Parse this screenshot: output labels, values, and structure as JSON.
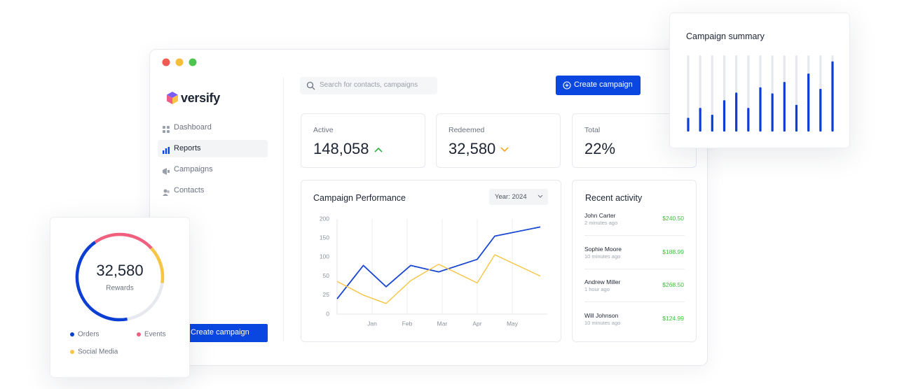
{
  "window": {
    "logo": "versify",
    "nav": [
      "Dashboard",
      "Reports",
      "Campaigns",
      "Contacts"
    ],
    "search_placeholder": "Search for contacts, campaigns",
    "create_button": "Create campaign",
    "sidebar_button": "Create campaign"
  },
  "stats": [
    {
      "label": "Active",
      "value": "148,058",
      "trend": "up"
    },
    {
      "label": "Redeemed",
      "value": "32,580",
      "trend": "down"
    },
    {
      "label": "Total",
      "value": "22%"
    }
  ],
  "activity": {
    "title": "Recent activity",
    "items": [
      {
        "name": "John Carter",
        "time": "2 minutes ago",
        "amount": "$240.50"
      },
      {
        "name": "Sophie Moore",
        "time": "10 minutes ago",
        "amount": "$188.99"
      },
      {
        "name": "Andrew Miller",
        "time": "1 hour ago",
        "amount": "$268.50"
      },
      {
        "name": "Will Johnson",
        "time": "10 minutes ago",
        "amount": "$124.99"
      }
    ]
  },
  "chart_data": [
    {
      "type": "line",
      "title": "Campaign Performance",
      "selector": "Year: 2024",
      "x": [
        0,
        0.75,
        1.4,
        2.1,
        2.9,
        4,
        4.5,
        5.8
      ],
      "xlim": [
        0,
        6
      ],
      "xticks": [
        {
          "value": 1,
          "label": "Jan"
        },
        {
          "value": 2,
          "label": "Feb"
        },
        {
          "value": 3,
          "label": "Mar"
        },
        {
          "value": 4,
          "label": "Apr"
        },
        {
          "value": 5,
          "label": "May"
        }
      ],
      "ylim": [
        0,
        200
      ],
      "yticks": [
        0,
        25,
        50,
        100,
        150,
        200
      ],
      "xgrid": true,
      "series": [
        {
          "color": "#1947d1",
          "values": [
            20,
            78,
            36,
            78,
            61,
            94,
            155,
            179
          ]
        },
        {
          "color": "#f7c544",
          "values": [
            43,
            25,
            14,
            44,
            81,
            41,
            106,
            50
          ]
        }
      ]
    },
    {
      "type": "bar",
      "title": "Campaign summary",
      "categories": [
        null,
        null,
        null,
        null,
        null,
        null,
        null,
        null,
        null,
        null,
        null,
        null,
        null
      ],
      "values": [
        18,
        31,
        22,
        41,
        51,
        31,
        58,
        50,
        65,
        35,
        76,
        56,
        92
      ],
      "ylim": [
        0,
        100
      ],
      "color": "#0b3fd4",
      "track_color": "#e6e8ee"
    },
    {
      "type": "pie",
      "donut": true,
      "center_value": "32,580",
      "center_label": "Rewards",
      "categories": [
        "Orders",
        "Events",
        "Social Media"
      ],
      "values": [
        43,
        23,
        14
      ],
      "colors": [
        "#0b3fd4",
        "#f0607e",
        "#f7c544"
      ],
      "track_color": "#e8e9ee"
    }
  ]
}
